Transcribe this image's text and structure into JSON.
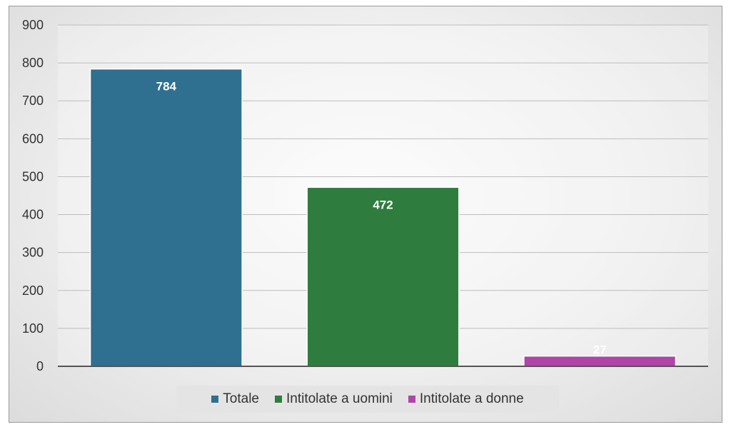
{
  "chart_data": {
    "type": "bar",
    "categories": [
      "Totale",
      "Intitolate a uomini",
      "Intitolate a donne"
    ],
    "values": [
      784,
      472,
      27
    ],
    "data_labels": [
      "784",
      "472",
      "27"
    ],
    "colors": [
      "#2f6f8f",
      "#2e7d3e",
      "#b044a8"
    ],
    "ylim": [
      0,
      900
    ],
    "yticks": [
      0,
      100,
      200,
      300,
      400,
      500,
      600,
      700,
      800,
      900
    ],
    "ytick_labels": [
      "0",
      "100",
      "200",
      "300",
      "400",
      "500",
      "600",
      "700",
      "800",
      "900"
    ],
    "grid": true,
    "legend_position": "bottom",
    "title": "",
    "xlabel": "",
    "ylabel": ""
  }
}
